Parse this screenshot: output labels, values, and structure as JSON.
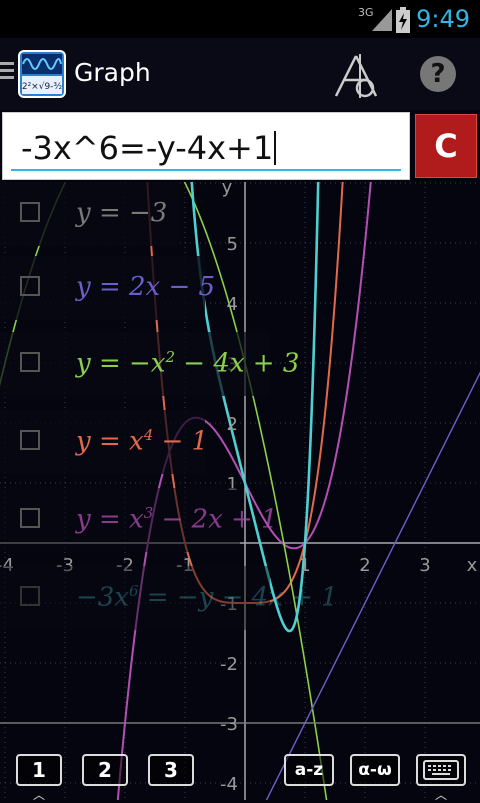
{
  "status_bar": {
    "network": "3G",
    "time": "9:49"
  },
  "app": {
    "title": "Graph"
  },
  "input": {
    "equation": "-3x^6=-y-4x+1",
    "clear_label": "C"
  },
  "help_label": "?",
  "functions": [
    {
      "prefix": "y = ",
      "expr": "−3",
      "color": "#7a7a7a"
    },
    {
      "prefix": "y = ",
      "expr": "2x − 5",
      "color": "#6a5fc9"
    },
    {
      "prefix": "y = ",
      "expr": "−x",
      "sup": "2",
      "tail": " − 4x + 3",
      "color": "#8bd04a"
    },
    {
      "prefix": "y = ",
      "expr": "x",
      "sup": "4",
      "tail": " − 1",
      "color": "#e26a4a"
    },
    {
      "prefix": "y = ",
      "expr": "x",
      "sup": "3",
      "tail": " − 2x + 1",
      "color": "#b44fb4"
    },
    {
      "prefix": "",
      "expr": "−3x",
      "sup": "6",
      "tail": " = −y − 4x + 1",
      "color": "#4fd0d0"
    }
  ],
  "axes": {
    "x_label": "x",
    "y_label": "y",
    "x_ticks": [
      "-4",
      "-3",
      "-2",
      "-1",
      "1",
      "2",
      "3"
    ],
    "y_ticks": [
      "5",
      "4",
      "3",
      "2",
      "1",
      "-1",
      "-2",
      "-3",
      "-4"
    ]
  },
  "keyboard": {
    "num1": "1",
    "num2": "2",
    "num3": "3",
    "az": "a-z",
    "greek": "α-ω"
  },
  "chart_data": {
    "type": "line",
    "xlabel": "x",
    "ylabel": "y",
    "xlim": [
      -4.1,
      3.75
    ],
    "ylim": [
      -4.3,
      5.25
    ],
    "grid": true,
    "series": [
      {
        "expr": "y = x^4 - 1",
        "color": "#e26a4a"
      },
      {
        "expr": "y = x^3 - 2x + 1",
        "color": "#b44fb4"
      },
      {
        "expr": "y = -x^2 - 4x + 3",
        "color": "#8bd04a"
      },
      {
        "expr": "y = 2x - 5",
        "color": "#6a5fc9"
      },
      {
        "expr": "y = -3",
        "color": "#7a7a7a"
      },
      {
        "expr": "-3x^6 = -y - 4x + 1",
        "color": "#4fd0d0"
      }
    ]
  }
}
